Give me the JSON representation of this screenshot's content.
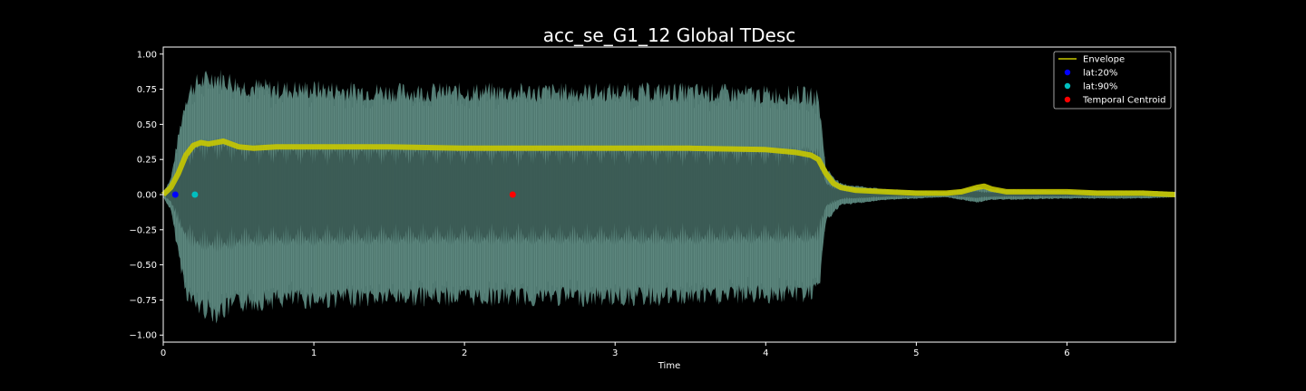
{
  "chart_data": {
    "type": "line",
    "title": "acc_se_G1_12 Global TDesc",
    "xlabel": "Time",
    "ylabel": "",
    "xlim": [
      0,
      6.72
    ],
    "ylim": [
      -1.05,
      1.05
    ],
    "xticks": [
      0,
      1,
      2,
      3,
      4,
      5,
      6
    ],
    "xtick_labels": [
      "0",
      "1",
      "2",
      "3",
      "4",
      "5",
      "6"
    ],
    "yticks": [
      1.0,
      0.75,
      0.5,
      0.25,
      0.0,
      -0.25,
      -0.5,
      -0.75,
      -1.0
    ],
    "ytick_labels": [
      "1.00",
      "0.75",
      "0.50",
      "0.25",
      "0.00",
      "−0.25",
      "−0.50",
      "−0.75",
      "−1.00"
    ],
    "grid": false,
    "legend_position": "top-right",
    "colors": {
      "background": "#000000",
      "axes": "#ffffff",
      "waveform": "#5f8f86",
      "waveform_core": "#3a5a53",
      "envelope": "#c8c800",
      "lat20": "#0000ff",
      "lat90": "#00bfbf",
      "centroid": "#ff0000"
    },
    "waveform_amplitude": {
      "time": [
        0,
        0.05,
        0.1,
        0.15,
        0.2,
        0.25,
        0.3,
        0.35,
        0.4,
        0.45,
        0.5,
        0.75,
        1.0,
        1.5,
        2.0,
        2.5,
        3.0,
        3.5,
        4.0,
        4.2,
        4.35,
        4.4,
        4.5,
        4.8,
        5.2,
        5.4,
        5.5,
        6.0,
        6.5,
        6.72
      ],
      "amplitude": [
        0.02,
        0.12,
        0.45,
        0.75,
        0.85,
        0.88,
        0.9,
        0.92,
        0.9,
        0.88,
        0.85,
        0.82,
        0.82,
        0.8,
        0.8,
        0.8,
        0.8,
        0.8,
        0.78,
        0.78,
        0.76,
        0.2,
        0.08,
        0.04,
        0.02,
        0.06,
        0.04,
        0.03,
        0.03,
        0.02
      ]
    },
    "series": [
      {
        "name": "Envelope",
        "x": [
          0,
          0.05,
          0.1,
          0.15,
          0.2,
          0.25,
          0.3,
          0.35,
          0.4,
          0.45,
          0.5,
          0.6,
          0.75,
          1.0,
          1.5,
          2.0,
          2.5,
          3.0,
          3.5,
          4.0,
          4.2,
          4.3,
          4.35,
          4.4,
          4.45,
          4.5,
          4.6,
          4.8,
          5.0,
          5.2,
          5.3,
          5.4,
          5.45,
          5.5,
          5.6,
          5.8,
          6.0,
          6.2,
          6.5,
          6.72
        ],
        "y": [
          0.0,
          0.05,
          0.15,
          0.28,
          0.35,
          0.37,
          0.36,
          0.37,
          0.38,
          0.36,
          0.34,
          0.33,
          0.34,
          0.34,
          0.34,
          0.33,
          0.33,
          0.33,
          0.33,
          0.32,
          0.3,
          0.28,
          0.25,
          0.15,
          0.08,
          0.05,
          0.03,
          0.02,
          0.01,
          0.01,
          0.02,
          0.05,
          0.06,
          0.04,
          0.02,
          0.02,
          0.02,
          0.01,
          0.01,
          0.0
        ]
      },
      {
        "name": "lat:20%",
        "x": [
          0.08
        ],
        "y": [
          0.0
        ]
      },
      {
        "name": "lat:90%",
        "x": [
          0.21
        ],
        "y": [
          0.0
        ]
      },
      {
        "name": "Temporal Centroid",
        "x": [
          2.32
        ],
        "y": [
          0.0
        ]
      }
    ]
  }
}
